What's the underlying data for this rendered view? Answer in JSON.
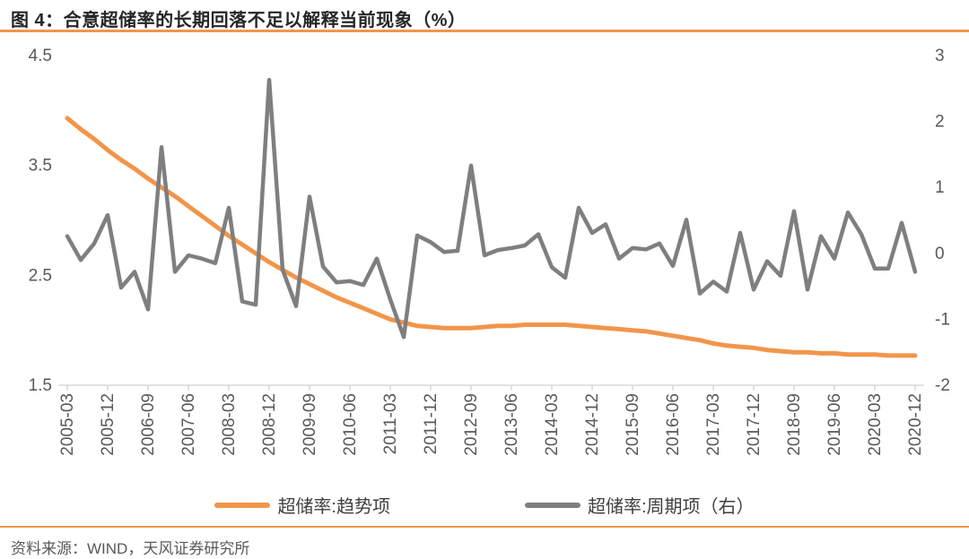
{
  "page": {
    "title": "图 4：合意超储率的长期回落不足以解释当前现象（%）",
    "source": "资料来源：WIND，天风证券研究所"
  },
  "colors": {
    "accent_orange": "#F2954A",
    "series_gray": "#7F7F7F",
    "axis_line": "#D9D9D9",
    "axis_text": "#595959"
  },
  "legend": {
    "items": [
      {
        "label": "超储率:趋势项",
        "color": "#F2954A"
      },
      {
        "label": "超储率:周期项（右）",
        "color": "#7F7F7F"
      }
    ]
  },
  "chart_data": {
    "type": "line",
    "title": "图 4：合意超储率的长期回落不足以解释当前现象（%）",
    "grid": false,
    "legend_position": "bottom",
    "categories": [
      "2005-03",
      "2005-06",
      "2005-09",
      "2005-12",
      "2006-03",
      "2006-06",
      "2006-09",
      "2006-12",
      "2007-03",
      "2007-06",
      "2007-09",
      "2007-12",
      "2008-03",
      "2008-06",
      "2008-09",
      "2008-12",
      "2009-03",
      "2009-06",
      "2009-09",
      "2009-12",
      "2010-03",
      "2010-06",
      "2010-09",
      "2010-12",
      "2011-03",
      "2011-06",
      "2011-09",
      "2011-12",
      "2012-03",
      "2012-06",
      "2012-09",
      "2012-12",
      "2013-03",
      "2013-06",
      "2013-09",
      "2013-12",
      "2014-03",
      "2014-06",
      "2014-09",
      "2014-12",
      "2015-03",
      "2015-06",
      "2015-09",
      "2015-12",
      "2016-03",
      "2016-06",
      "2016-09",
      "2016-12",
      "2017-03",
      "2017-06",
      "2017-09",
      "2017-12",
      "2018-03",
      "2018-06",
      "2018-09",
      "2018-12",
      "2019-03",
      "2019-06",
      "2019-09",
      "2019-12",
      "2020-03",
      "2020-06",
      "2020-09",
      "2020-12"
    ],
    "x_tick_labels": [
      "2005-03",
      "2005-12",
      "2006-09",
      "2007-06",
      "2008-03",
      "2008-12",
      "2009-09",
      "2010-06",
      "2011-03",
      "2011-12",
      "2012-09",
      "2013-06",
      "2014-03",
      "2014-12",
      "2015-09",
      "2016-06",
      "2017-03",
      "2017-12",
      "2018-09",
      "2019-06",
      "2020-03",
      "2020-12"
    ],
    "x_tick_step": 3,
    "left_axis": {
      "min": 1.5,
      "max": 4.5,
      "ticks": [
        4.5,
        3.5,
        2.5,
        1.5
      ]
    },
    "right_axis": {
      "min": -2,
      "max": 3,
      "ticks": [
        3,
        2,
        1,
        0,
        -1,
        -2
      ]
    },
    "series": [
      {
        "name": "超储率:趋势项",
        "axis": "left",
        "color": "#F2954A",
        "stroke_width": 5,
        "values": [
          3.93,
          3.83,
          3.74,
          3.64,
          3.55,
          3.47,
          3.38,
          3.3,
          3.22,
          3.13,
          3.04,
          2.95,
          2.86,
          2.78,
          2.7,
          2.62,
          2.55,
          2.48,
          2.42,
          2.36,
          2.3,
          2.25,
          2.2,
          2.15,
          2.1,
          2.07,
          2.04,
          2.03,
          2.02,
          2.02,
          2.02,
          2.03,
          2.04,
          2.04,
          2.05,
          2.05,
          2.05,
          2.05,
          2.04,
          2.03,
          2.02,
          2.01,
          2.0,
          1.99,
          1.97,
          1.95,
          1.93,
          1.91,
          1.88,
          1.86,
          1.85,
          1.84,
          1.82,
          1.81,
          1.8,
          1.8,
          1.79,
          1.79,
          1.78,
          1.78,
          1.78,
          1.77,
          1.77,
          1.77
        ]
      },
      {
        "name": "超储率:周期项（右）",
        "axis": "right",
        "color": "#7F7F7F",
        "stroke_width": 4.5,
        "values": [
          0.26,
          -0.1,
          0.15,
          0.58,
          -0.52,
          -0.28,
          -0.85,
          1.61,
          -0.28,
          -0.03,
          -0.08,
          -0.15,
          0.69,
          -0.73,
          -0.78,
          2.63,
          -0.25,
          -0.8,
          0.86,
          -0.2,
          -0.44,
          -0.42,
          -0.48,
          -0.08,
          -0.7,
          -1.27,
          0.27,
          0.17,
          0.02,
          0.04,
          1.33,
          -0.03,
          0.05,
          0.08,
          0.12,
          0.29,
          -0.21,
          -0.37,
          0.69,
          0.31,
          0.44,
          -0.08,
          0.08,
          0.06,
          0.15,
          -0.19,
          0.51,
          -0.61,
          -0.43,
          -0.58,
          0.31,
          -0.55,
          -0.12,
          -0.34,
          0.64,
          -0.55,
          0.26,
          -0.08,
          0.62,
          0.29,
          -0.23,
          -0.23,
          0.46,
          -0.28
        ]
      }
    ]
  }
}
